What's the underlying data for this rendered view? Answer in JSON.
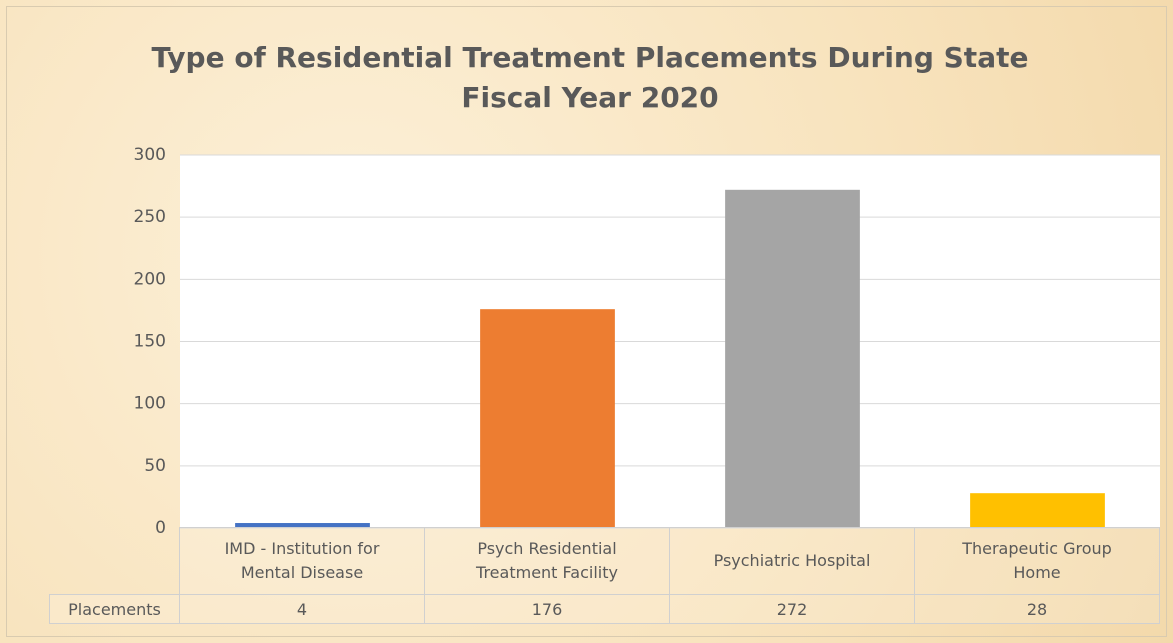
{
  "chart_data": {
    "type": "bar",
    "title": "Type of Residential Treatment Placements During State Fiscal Year 2020",
    "categories": [
      "IMD - Institution for Mental Disease",
      "Psych Residential Treatment Facility",
      "Psychiatric Hospital",
      "Therapeutic Group Home"
    ],
    "series": [
      {
        "name": "Placements",
        "colors": [
          "#4472c4",
          "#ed7d31",
          "#a5a5a5",
          "#ffc000"
        ],
        "values": [
          4,
          176,
          272,
          28
        ]
      }
    ],
    "ylim": [
      0,
      300
    ],
    "yticks": [
      0,
      50,
      100,
      150,
      200,
      250,
      300
    ],
    "grid": true
  }
}
